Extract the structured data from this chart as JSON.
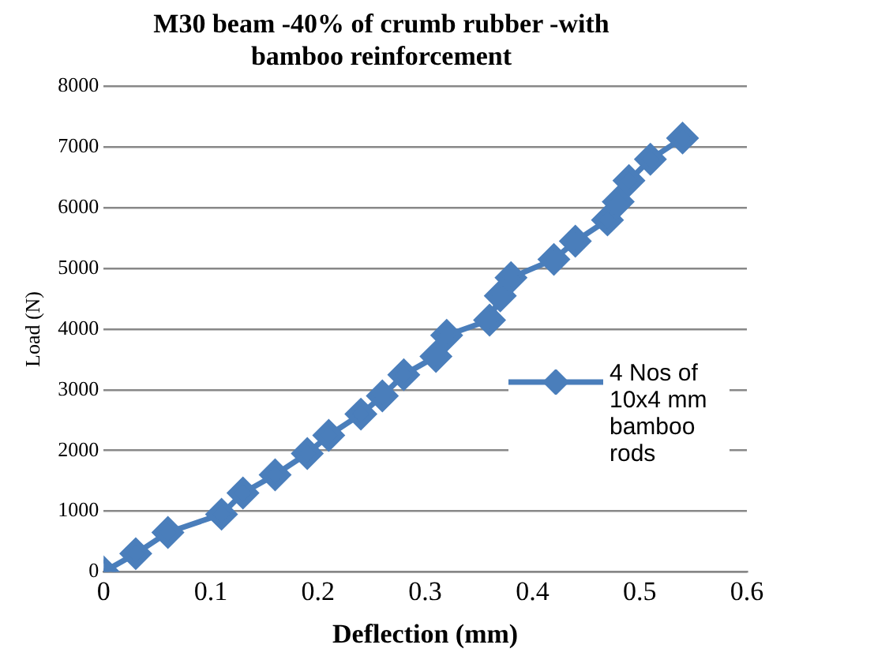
{
  "chart_data": {
    "type": "line",
    "title": "M30 beam -40% of crumb rubber -with bamboo reinforcement",
    "xlabel": "Deflection (mm)",
    "ylabel": "Load (N)",
    "x": [
      0,
      0.03,
      0.06,
      0.11,
      0.13,
      0.16,
      0.19,
      0.21,
      0.24,
      0.26,
      0.28,
      0.31,
      0.32,
      0.36,
      0.37,
      0.38,
      0.42,
      0.44,
      0.47,
      0.48,
      0.49,
      0.51,
      0.54
    ],
    "series": [
      {
        "name": "4 Nos of 10x4 mm bamboo rods",
        "color": "#4a7ebb",
        "values": [
          0,
          300,
          650,
          950,
          1300,
          1600,
          1950,
          2250,
          2600,
          2900,
          3250,
          3550,
          3900,
          4150,
          4550,
          4850,
          5150,
          5450,
          5800,
          6100,
          6450,
          6800,
          7150
        ]
      }
    ],
    "xlim": [
      0,
      0.6
    ],
    "xticks": [
      0,
      0.1,
      0.2,
      0.3,
      0.4,
      0.5,
      0.6
    ],
    "ylim": [
      0,
      8000
    ],
    "yticks": [
      0,
      1000,
      2000,
      3000,
      4000,
      5000,
      6000,
      7000,
      8000
    ],
    "grid": "y",
    "legend": "right",
    "marker": "diamond",
    "line_style": "solid"
  }
}
